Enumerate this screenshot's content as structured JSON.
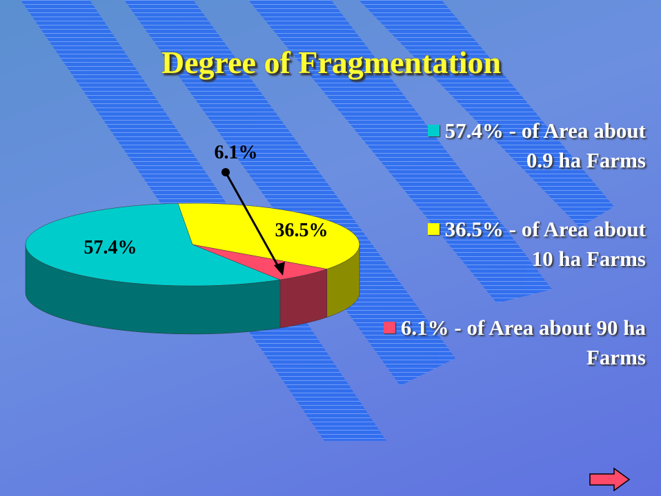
{
  "chart_data": {
    "type": "pie3d",
    "title": "Degree of Fragmentation",
    "categories": [
      "57.4% - of Area about 0.9 ha Farms",
      "36.5% - of Area about 10 ha Farms",
      "6.1% - of Area about 90 ha Farms"
    ],
    "values": [
      57.4,
      36.5,
      6.1
    ],
    "value_labels": [
      "57.4%",
      "36.5%",
      "6.1%"
    ],
    "colors": [
      "#00cccc",
      "#ffff00",
      "#ff4a6a"
    ]
  }
}
